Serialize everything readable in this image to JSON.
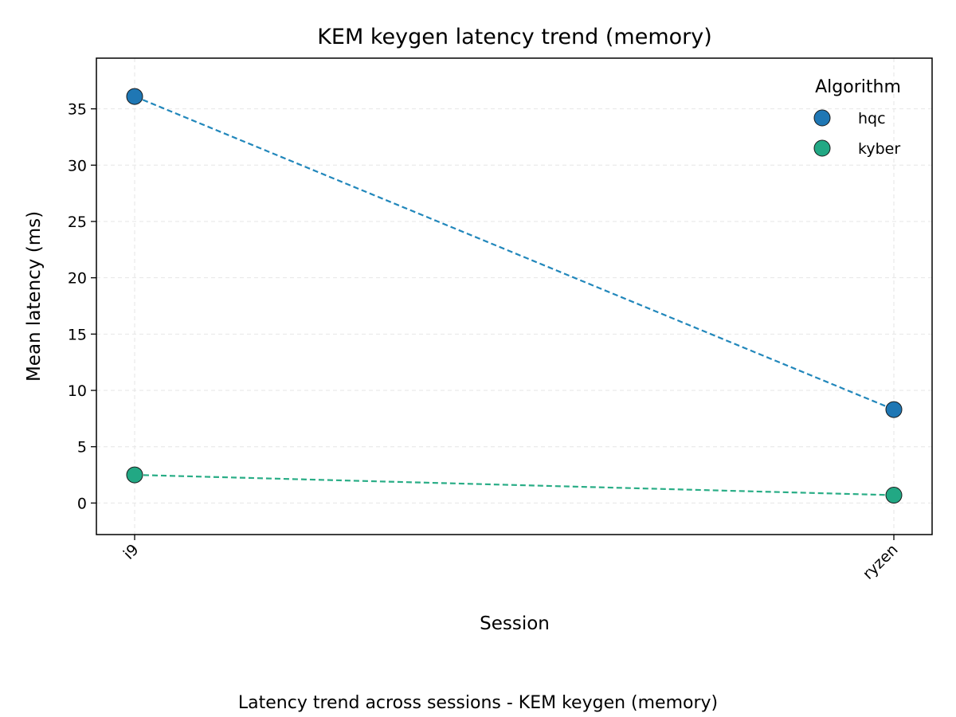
{
  "chart_data": {
    "type": "line",
    "title": "KEM keygen latency trend (memory)",
    "xlabel": "Session",
    "ylabel": "Mean latency (ms)",
    "caption": "Latency trend across sessions - KEM keygen (memory)",
    "categories": [
      "i9",
      "ryzen"
    ],
    "ylim": [
      -2.8,
      39.5
    ],
    "yticks": [
      0,
      5,
      10,
      15,
      20,
      25,
      30,
      35
    ],
    "grid": true,
    "legend": {
      "title": "Algorithm",
      "placement": "top-right"
    },
    "series": [
      {
        "name": "hqc",
        "values": [
          36.1,
          8.3
        ],
        "color": "#2187bb",
        "marker_color": "#1f77b4"
      },
      {
        "name": "kyber",
        "values": [
          2.5,
          0.7
        ],
        "color": "#29ad86",
        "marker_color": "#22a884"
      }
    ]
  }
}
